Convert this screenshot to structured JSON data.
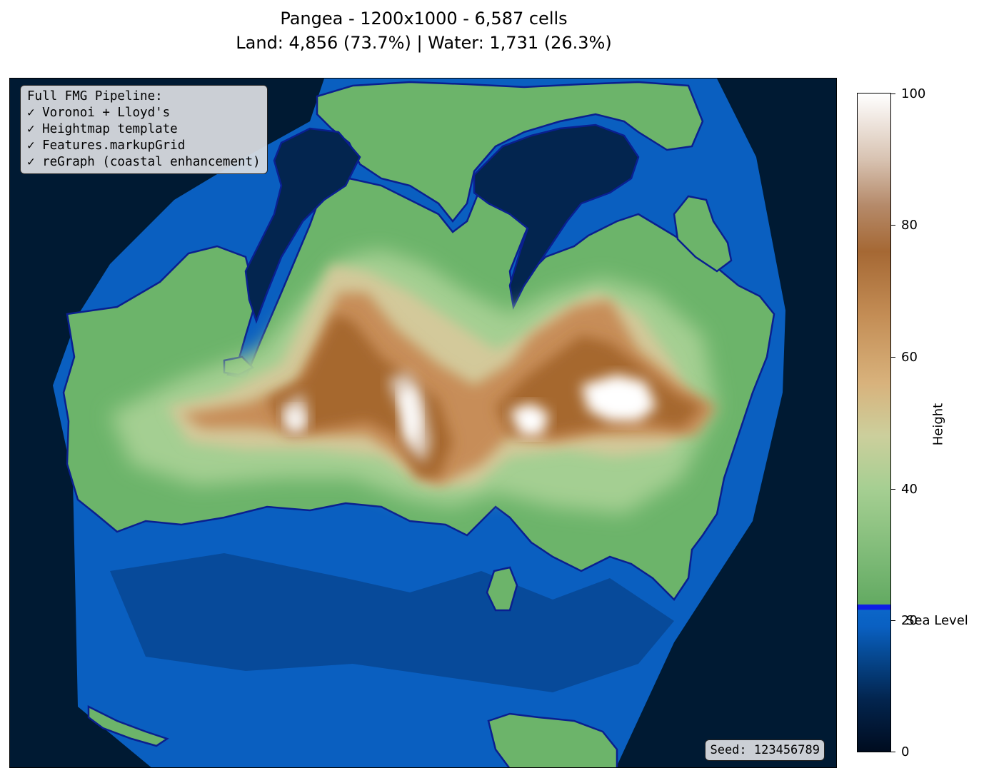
{
  "title": {
    "line1": "Pangea - 1200x1000 - 6,587 cells",
    "line2": "Land: 4,856 (73.7%) | Water: 1,731 (26.3%)"
  },
  "pipeline_box": {
    "lines": [
      "Full FMG Pipeline:",
      "✓ Voronoi + Lloyd's",
      "✓ Heightmap template",
      "✓ Features.markupGrid",
      "✓ reGraph (coastal enhancement)"
    ]
  },
  "seed_label": "Seed: 123456789",
  "colorbar": {
    "label": "Height",
    "ticks": [
      "0",
      "20",
      "40",
      "60",
      "80",
      "100"
    ],
    "min": 0,
    "max": 100,
    "sea_level": 20,
    "sea_level_label": "Sea Level"
  },
  "colors": {
    "deep_ocean": "#001a33",
    "shallow_water": "#0b63c4",
    "coastline": "#0a1f8f",
    "lowland": "#6cb46a",
    "midland": "#cbcc9c",
    "highland": "#b8763e",
    "peak": "#ffffff"
  }
}
